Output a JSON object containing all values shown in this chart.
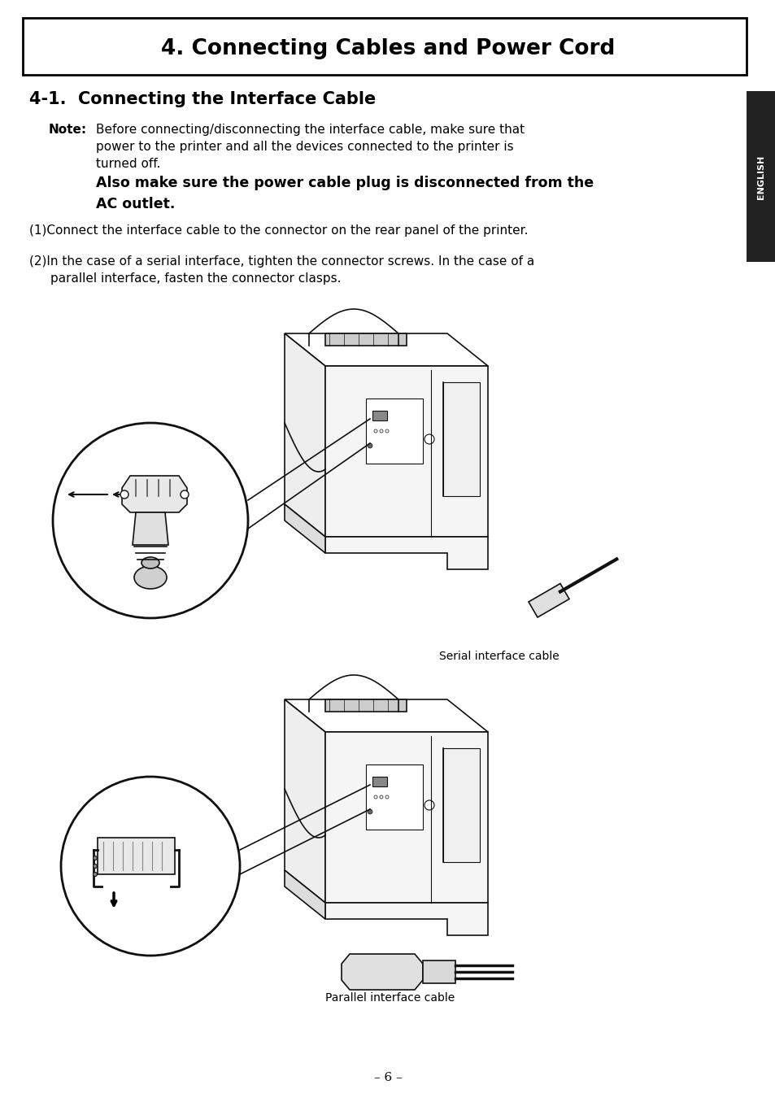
{
  "title": "4. Connecting Cables and Power Cord",
  "section_title": "4-1.  Connecting the Interface Cable",
  "note_label": "Note:",
  "note_line1": "Before connecting/disconnecting the interface cable, make sure that",
  "note_line2": "power to the printer and all the devices connected to the printer is",
  "note_line3": "turned off.",
  "note_bold1": "Also make sure the power cable plug is disconnected from the",
  "note_bold2": "AC outlet.",
  "item1": "(1)Connect the interface cable to the connector on the rear panel of the printer.",
  "item2a": "(2)In the case of a serial interface, tighten the connector screws. In the case of a",
  "item2b": "parallel interface, fasten the connector clasps.",
  "caption1": "Serial interface cable",
  "caption2": "Parallel interface cable",
  "page_number": "– 6 –",
  "english_tab": "ENGLISH",
  "bg_color": "#ffffff",
  "text_color": "#000000",
  "tab_bg": "#222222",
  "tab_text": "#ffffff"
}
